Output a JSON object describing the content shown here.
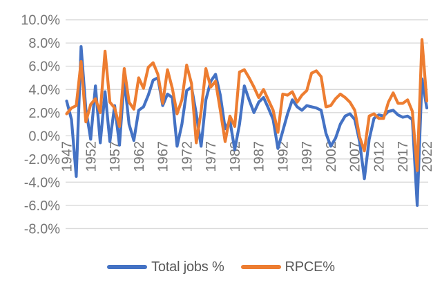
{
  "chart_data": {
    "type": "line",
    "title": "",
    "xlabel": "",
    "ylabel": "",
    "grid": true,
    "legend_position": "bottom",
    "x": {
      "years": [
        1947,
        1948,
        1949,
        1950,
        1951,
        1952,
        1953,
        1954,
        1955,
        1956,
        1957,
        1958,
        1959,
        1960,
        1961,
        1962,
        1963,
        1964,
        1965,
        1966,
        1967,
        1968,
        1969,
        1970,
        1971,
        1972,
        1973,
        1974,
        1975,
        1976,
        1977,
        1978,
        1979,
        1980,
        1981,
        1982,
        1983,
        1984,
        1985,
        1986,
        1987,
        1988,
        1989,
        1990,
        1991,
        1992,
        1993,
        1994,
        1995,
        1996,
        1997,
        1998,
        1999,
        2000,
        2001,
        2002,
        2003,
        2004,
        2005,
        2006,
        2007,
        2008,
        2009,
        2010,
        2011,
        2012,
        2013,
        2014,
        2015,
        2016,
        2017,
        2018,
        2019,
        2020,
        2021,
        2022
      ],
      "tick_years": [
        1947,
        1952,
        1957,
        1962,
        1967,
        1972,
        1977,
        1982,
        1987,
        1992,
        1997,
        2002,
        2007,
        2012,
        2017,
        2022
      ]
    },
    "y": {
      "min": -8,
      "max": 10,
      "tick_values": [
        10,
        8,
        6,
        4,
        2,
        0,
        -2,
        -4,
        -6,
        -8
      ],
      "tick_labels": [
        "10.0%",
        "8.0%",
        "6.0%",
        "4.0%",
        "2.0%",
        "0.0%",
        "-2.0%",
        "-4.0%",
        "-6.0%",
        "-8.0%"
      ]
    },
    "series": [
      {
        "name": "Total jobs %",
        "color": "#4472C4",
        "values": [
          3.0,
          1.4,
          -3.5,
          7.7,
          2.3,
          -0.3,
          4.3,
          -0.6,
          3.8,
          -0.5,
          2.6,
          -0.8,
          4.9,
          1.0,
          -0.4,
          2.2,
          2.5,
          3.5,
          4.8,
          5.0,
          2.6,
          3.6,
          3.3,
          -0.9,
          1.0,
          3.9,
          4.2,
          1.9,
          -0.9,
          3.1,
          4.7,
          5.3,
          3.5,
          0.6,
          1.3,
          -1.2,
          1.0,
          4.3,
          3.1,
          2.0,
          2.9,
          3.3,
          2.4,
          1.4,
          -1.1,
          0.4,
          1.9,
          3.1,
          2.5,
          2.2,
          2.6,
          2.5,
          2.4,
          2.2,
          0.2,
          -0.9,
          -0.2,
          1.0,
          1.7,
          1.9,
          1.4,
          -0.5,
          -3.7,
          -0.3,
          1.5,
          1.8,
          1.7,
          2.1,
          2.2,
          1.8,
          1.6,
          1.7,
          1.4,
          -6.0,
          4.9,
          2.4
        ]
      },
      {
        "name": "RPCE%",
        "color": "#ED7D31",
        "values": [
          1.9,
          2.4,
          2.6,
          6.4,
          1.2,
          2.7,
          3.2,
          2.0,
          7.3,
          2.9,
          2.4,
          0.8,
          5.8,
          2.9,
          2.3,
          5.0,
          4.1,
          5.9,
          6.3,
          5.3,
          2.8,
          5.7,
          4.1,
          1.9,
          3.1,
          6.1,
          4.5,
          -0.6,
          2.1,
          5.8,
          4.2,
          4.7,
          2.2,
          -0.5,
          1.7,
          0.8,
          5.5,
          5.7,
          5.0,
          4.2,
          3.3,
          4.0,
          3.1,
          2.2,
          0.3,
          3.6,
          3.5,
          3.8,
          2.9,
          3.5,
          3.9,
          5.4,
          5.6,
          5.1,
          2.5,
          2.6,
          3.2,
          3.6,
          3.3,
          2.9,
          2.2,
          -0.1,
          -1.3,
          1.7,
          1.9,
          1.5,
          1.5,
          2.9,
          3.7,
          2.8,
          2.8,
          3.1,
          2.1,
          -3.0,
          8.3,
          3.0
        ]
      }
    ]
  },
  "colors": {
    "gridline": "#D9D9D9",
    "axis_text": "#767676",
    "legend_text": "#595959",
    "background": "#FFFFFF"
  }
}
